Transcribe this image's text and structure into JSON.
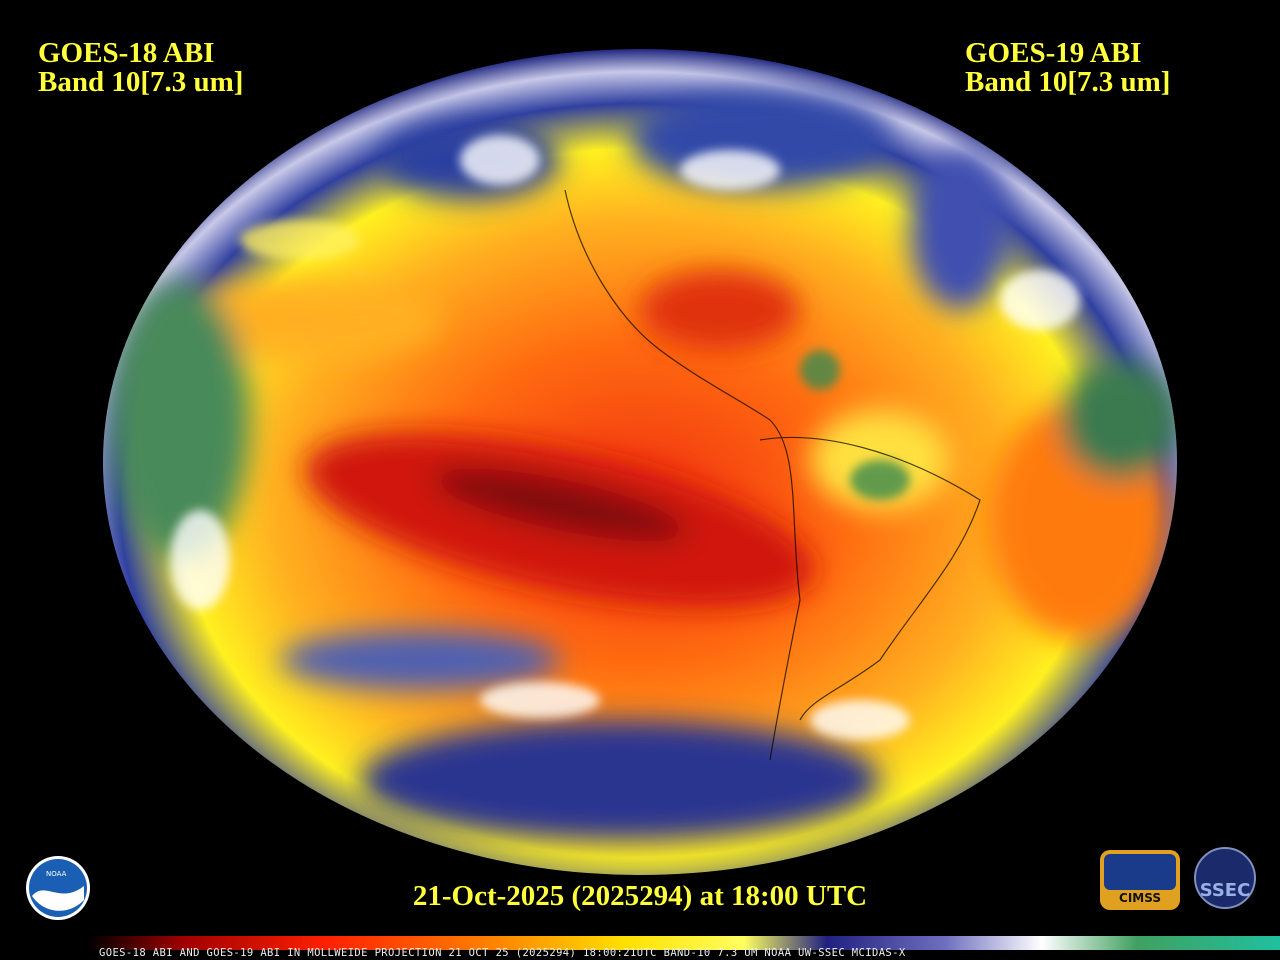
{
  "left_label": {
    "satellite": "GOES-18 ABI",
    "band": "Band 10[7.3 um]"
  },
  "right_label": {
    "satellite": "GOES-19 ABI",
    "band": "Band 10[7.3 um]"
  },
  "timestamp": "21-Oct-2025 (2025294) at 18:00 UTC",
  "footer": "GOES-18 ABI AND GOES-19 ABI IN MOLLWEIDE PROJECTION 21 OCT 25 (2025294) 18:00:21UTC BAND-10 7.3 UM NOAA UW-SSEC MCIDAS-X",
  "logos": {
    "noaa": "NOAA",
    "cimss": "CIMSS",
    "ssec": "SSEC"
  }
}
